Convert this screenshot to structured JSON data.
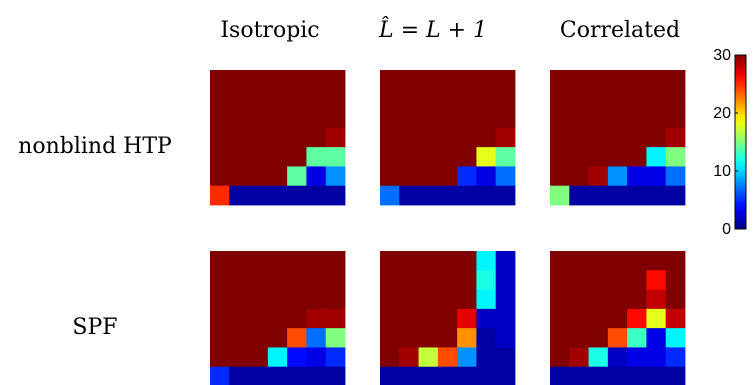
{
  "chart_data": {
    "type": "heatmap",
    "columns": [
      "Isotropic",
      "L̂ = L + 1",
      "Correlated"
    ],
    "rows": [
      "nonblind HTP",
      "SPF"
    ],
    "grid_size": 7,
    "colormap": "jet",
    "clim": [
      0,
      30
    ],
    "colorbar": {
      "ticks": [
        0,
        10,
        20,
        30
      ],
      "tick_labels": [
        "0",
        "10",
        "20",
        "30"
      ]
    },
    "panels": [
      {
        "row": "nonblind HTP",
        "column": "Isotropic",
        "values": [
          [
            30,
            30,
            30,
            30,
            30,
            30,
            30
          ],
          [
            30,
            30,
            30,
            30,
            30,
            30,
            30
          ],
          [
            30,
            30,
            30,
            30,
            30,
            30,
            30
          ],
          [
            30,
            30,
            30,
            30,
            30,
            30,
            29
          ],
          [
            30,
            30,
            30,
            30,
            30,
            14,
            14
          ],
          [
            30,
            30,
            30,
            30,
            14,
            3,
            8
          ],
          [
            25,
            1,
            1,
            1,
            1,
            1,
            1
          ]
        ]
      },
      {
        "row": "nonblind HTP",
        "column": "L̂ = L + 1",
        "values": [
          [
            30,
            30,
            30,
            30,
            30,
            30,
            30
          ],
          [
            30,
            30,
            30,
            30,
            30,
            30,
            30
          ],
          [
            30,
            30,
            30,
            30,
            30,
            30,
            30
          ],
          [
            30,
            30,
            30,
            30,
            30,
            30,
            29
          ],
          [
            30,
            30,
            30,
            30,
            30,
            18,
            14
          ],
          [
            30,
            30,
            30,
            30,
            5,
            3,
            7
          ],
          [
            7,
            1,
            1,
            1,
            1,
            1,
            1
          ]
        ]
      },
      {
        "row": "nonblind HTP",
        "column": "Correlated",
        "values": [
          [
            30,
            30,
            30,
            30,
            30,
            30,
            30
          ],
          [
            30,
            30,
            30,
            30,
            30,
            30,
            30
          ],
          [
            30,
            30,
            30,
            30,
            30,
            30,
            30
          ],
          [
            30,
            30,
            30,
            30,
            30,
            30,
            29
          ],
          [
            30,
            30,
            30,
            30,
            30,
            11,
            15
          ],
          [
            30,
            30,
            29,
            8,
            3,
            3,
            7
          ],
          [
            15,
            1,
            1,
            1,
            1,
            1,
            1
          ]
        ]
      },
      {
        "row": "SPF",
        "column": "Isotropic",
        "values": [
          [
            30,
            30,
            30,
            30,
            30,
            30,
            30
          ],
          [
            30,
            30,
            30,
            30,
            30,
            30,
            30
          ],
          [
            30,
            30,
            30,
            30,
            30,
            30,
            30
          ],
          [
            30,
            30,
            30,
            30,
            30,
            29,
            29
          ],
          [
            30,
            30,
            30,
            30,
            24,
            7,
            15
          ],
          [
            30,
            30,
            30,
            11,
            4,
            3,
            5
          ],
          [
            5,
            1,
            1,
            1,
            1,
            1,
            1
          ]
        ]
      },
      {
        "row": "SPF",
        "column": "L̂ = L + 1",
        "values": [
          [
            30,
            30,
            30,
            30,
            30,
            11,
            2
          ],
          [
            30,
            30,
            30,
            30,
            30,
            12,
            2
          ],
          [
            30,
            30,
            30,
            30,
            30,
            11,
            2
          ],
          [
            30,
            30,
            30,
            30,
            27,
            2,
            2
          ],
          [
            30,
            30,
            30,
            30,
            22,
            1,
            2
          ],
          [
            30,
            29,
            17,
            24,
            8,
            1,
            1
          ],
          [
            1,
            1,
            1,
            1,
            1,
            1,
            1
          ]
        ]
      },
      {
        "row": "SPF",
        "column": "Correlated",
        "values": [
          [
            30,
            30,
            30,
            30,
            30,
            30,
            30
          ],
          [
            30,
            30,
            30,
            30,
            30,
            26,
            30
          ],
          [
            30,
            30,
            30,
            30,
            30,
            28,
            30
          ],
          [
            30,
            30,
            30,
            30,
            26,
            18,
            28
          ],
          [
            30,
            30,
            30,
            24,
            13,
            3,
            11
          ],
          [
            30,
            29,
            12,
            2,
            3,
            3,
            5
          ],
          [
            1,
            1,
            1,
            1,
            1,
            1,
            1
          ]
        ]
      }
    ]
  }
}
